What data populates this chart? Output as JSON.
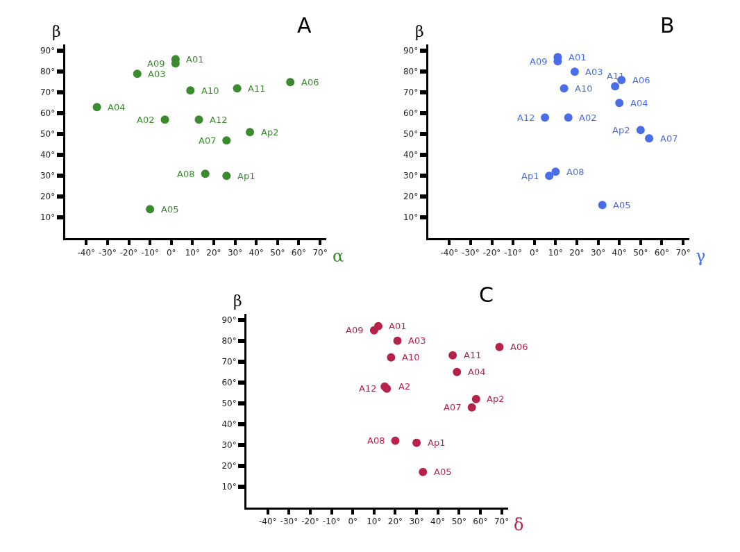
{
  "chart_data": [
    {
      "type": "scatter",
      "title": "A",
      "xlabel": "α",
      "ylabel": "β",
      "marker": "circle",
      "series": [
        {
          "color": "#3a8a2e",
          "x": [
            2,
            2,
            -16,
            9,
            31,
            56,
            -35,
            -3,
            13,
            37,
            26,
            16,
            26,
            -10
          ],
          "values": [
            86,
            84,
            79,
            71,
            72,
            75,
            63,
            57,
            57,
            51,
            47,
            31,
            30,
            14
          ]
        }
      ],
      "annotations": [
        {
          "text": "A01",
          "x": 2,
          "y": 86
        },
        {
          "text": "A09",
          "x": 2,
          "y": 84
        },
        {
          "text": "A03",
          "x": -16,
          "y": 79
        },
        {
          "text": "A10",
          "x": 9,
          "y": 71
        },
        {
          "text": "A11",
          "x": 31,
          "y": 72
        },
        {
          "text": "A06",
          "x": 56,
          "y": 75
        },
        {
          "text": "A04",
          "x": -35,
          "y": 63
        },
        {
          "text": "A02",
          "x": -3,
          "y": 57
        },
        {
          "text": "A12",
          "x": 13,
          "y": 57
        },
        {
          "text": "Ap2",
          "x": 37,
          "y": 51
        },
        {
          "text": "A07",
          "x": 26,
          "y": 47
        },
        {
          "text": "A08",
          "x": 16,
          "y": 31
        },
        {
          "text": "Ap1",
          "x": 26,
          "y": 30
        },
        {
          "text": "A05",
          "x": -10,
          "y": 14
        }
      ],
      "xlim": [
        -50,
        73
      ],
      "ylim": [
        0,
        93
      ],
      "xticks": [
        {
          "value": -40,
          "label": "-40°"
        },
        {
          "value": -30,
          "label": "-30°"
        },
        {
          "value": -20,
          "label": "-20°"
        },
        {
          "value": -10,
          "label": "-10°"
        },
        {
          "value": 0,
          "label": "0°"
        },
        {
          "value": 10,
          "label": "10°"
        },
        {
          "value": 20,
          "label": "20°"
        },
        {
          "value": 30,
          "label": "30°"
        },
        {
          "value": 40,
          "label": "40°"
        },
        {
          "value": 50,
          "label": "50°"
        },
        {
          "value": 60,
          "label": "60°"
        },
        {
          "value": 70,
          "label": "70°"
        }
      ],
      "yticks": [
        {
          "value": 10,
          "label": "10°"
        },
        {
          "value": 20,
          "label": "20°"
        },
        {
          "value": 30,
          "label": "30°"
        },
        {
          "value": 40,
          "label": "40°"
        },
        {
          "value": 50,
          "label": "50°"
        },
        {
          "value": 60,
          "label": "60°"
        },
        {
          "value": 70,
          "label": "70°"
        },
        {
          "value": 80,
          "label": "80°"
        },
        {
          "value": 90,
          "label": "90°"
        }
      ]
    },
    {
      "type": "scatter",
      "title": "B",
      "xlabel": "γ",
      "ylabel": "β",
      "marker": "circle",
      "series": [
        {
          "color": "#4a6ee8",
          "x": [
            11,
            11,
            19,
            14,
            41,
            38,
            40,
            5,
            16,
            50,
            54,
            10,
            7,
            32
          ],
          "values": [
            87,
            85,
            80,
            72,
            76,
            73,
            65,
            58,
            58,
            52,
            48,
            32,
            30,
            16
          ]
        }
      ],
      "annotations": [
        {
          "text": "A01",
          "x": 11,
          "y": 87
        },
        {
          "text": "A09",
          "x": 11,
          "y": 85
        },
        {
          "text": "A03",
          "x": 19,
          "y": 80
        },
        {
          "text": "A10",
          "x": 14,
          "y": 72
        },
        {
          "text": "A06",
          "x": 41,
          "y": 76
        },
        {
          "text": "A11",
          "x": 38,
          "y": 73
        },
        {
          "text": "A04",
          "x": 40,
          "y": 65
        },
        {
          "text": "A12",
          "x": 5,
          "y": 58
        },
        {
          "text": "A02",
          "x": 16,
          "y": 58
        },
        {
          "text": "Ap2",
          "x": 50,
          "y": 52
        },
        {
          "text": "A07",
          "x": 54,
          "y": 48
        },
        {
          "text": "A08",
          "x": 10,
          "y": 32
        },
        {
          "text": "Ap1",
          "x": 7,
          "y": 30
        },
        {
          "text": "A05",
          "x": 32,
          "y": 16
        }
      ],
      "xlim": [
        -50,
        73
      ],
      "ylim": [
        0,
        93
      ],
      "xticks": [
        {
          "value": -40,
          "label": "-40°"
        },
        {
          "value": -30,
          "label": "-30°"
        },
        {
          "value": -20,
          "label": "-20°"
        },
        {
          "value": -10,
          "label": "-10°"
        },
        {
          "value": 0,
          "label": "0°"
        },
        {
          "value": 10,
          "label": "10°"
        },
        {
          "value": 20,
          "label": "20°"
        },
        {
          "value": 30,
          "label": "30°"
        },
        {
          "value": 40,
          "label": "40°"
        },
        {
          "value": 50,
          "label": "50°"
        },
        {
          "value": 60,
          "label": "60°"
        },
        {
          "value": 70,
          "label": "70°"
        }
      ],
      "yticks": [
        {
          "value": 10,
          "label": "10°"
        },
        {
          "value": 20,
          "label": "20°"
        },
        {
          "value": 30,
          "label": "30°"
        },
        {
          "value": 40,
          "label": "40°"
        },
        {
          "value": 50,
          "label": "50°"
        },
        {
          "value": 60,
          "label": "60°"
        },
        {
          "value": 70,
          "label": "70°"
        },
        {
          "value": 80,
          "label": "80°"
        },
        {
          "value": 90,
          "label": "90°"
        }
      ]
    },
    {
      "type": "scatter",
      "title": "C",
      "xlabel": "δ",
      "ylabel": "β",
      "marker": "circle",
      "series": [
        {
          "color": "#b5234a",
          "x": [
            12,
            10,
            21,
            18,
            47,
            69,
            49,
            15,
            16,
            58,
            56,
            20,
            30,
            33
          ],
          "values": [
            87,
            85,
            80,
            72,
            73,
            77,
            65,
            58,
            57,
            52,
            48,
            32,
            31,
            17
          ]
        }
      ],
      "annotations": [
        {
          "text": "A01",
          "x": 12,
          "y": 87
        },
        {
          "text": "A09",
          "x": 10,
          "y": 85
        },
        {
          "text": "A03",
          "x": 21,
          "y": 80
        },
        {
          "text": "A10",
          "x": 18,
          "y": 72
        },
        {
          "text": "A11",
          "x": 47,
          "y": 73
        },
        {
          "text": "A06",
          "x": 69,
          "y": 77
        },
        {
          "text": "A04",
          "x": 49,
          "y": 65
        },
        {
          "text": "A2",
          "x": 15,
          "y": 58
        },
        {
          "text": "A12",
          "x": 16,
          "y": 57
        },
        {
          "text": "Ap2",
          "x": 58,
          "y": 52
        },
        {
          "text": "A07",
          "x": 56,
          "y": 48
        },
        {
          "text": "A08",
          "x": 20,
          "y": 32
        },
        {
          "text": "Ap1",
          "x": 30,
          "y": 31
        },
        {
          "text": "A05",
          "x": 33,
          "y": 17
        }
      ],
      "xlim": [
        -50,
        73
      ],
      "ylim": [
        0,
        93
      ],
      "xticks": [
        {
          "value": -40,
          "label": "-40°"
        },
        {
          "value": -30,
          "label": "-30°"
        },
        {
          "value": -20,
          "label": "-20°"
        },
        {
          "value": -10,
          "label": "-10°"
        },
        {
          "value": 0,
          "label": "0°"
        },
        {
          "value": 10,
          "label": "10°"
        },
        {
          "value": 20,
          "label": "20°"
        },
        {
          "value": 30,
          "label": "30°"
        },
        {
          "value": 40,
          "label": "40°"
        },
        {
          "value": 50,
          "label": "50°"
        },
        {
          "value": 60,
          "label": "60°"
        },
        {
          "value": 70,
          "label": "70°"
        }
      ],
      "yticks": [
        {
          "value": 10,
          "label": "10°"
        },
        {
          "value": 20,
          "label": "20°"
        },
        {
          "value": 30,
          "label": "30°"
        },
        {
          "value": 40,
          "label": "40°"
        },
        {
          "value": 50,
          "label": "50°"
        },
        {
          "value": 60,
          "label": "60°"
        },
        {
          "value": 70,
          "label": "70°"
        },
        {
          "value": 80,
          "label": "80°"
        },
        {
          "value": 90,
          "label": "90°"
        }
      ]
    }
  ]
}
